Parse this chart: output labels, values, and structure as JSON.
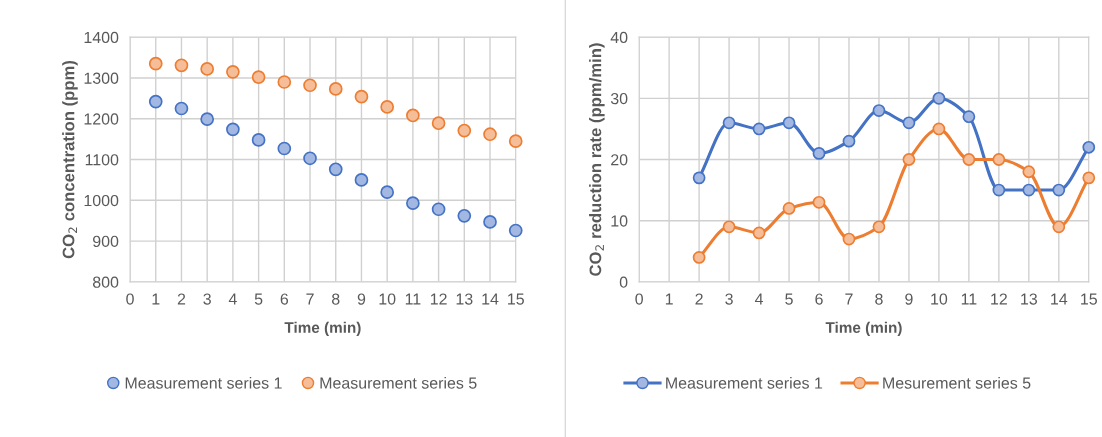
{
  "chart_data": [
    {
      "type": "scatter",
      "xlabel": "Time (min)",
      "ylabel": "CO$_{2}$ concentration (ppm)",
      "x": [
        1,
        2,
        3,
        4,
        5,
        6,
        7,
        8,
        9,
        10,
        11,
        12,
        13,
        14,
        15
      ],
      "xlim": [
        0,
        15
      ],
      "xticks": [
        0,
        1,
        2,
        3,
        4,
        5,
        6,
        7,
        8,
        9,
        10,
        11,
        12,
        13,
        14,
        15
      ],
      "ylim": [
        800,
        1400
      ],
      "yticks": [
        800,
        900,
        1000,
        1100,
        1200,
        1300,
        1400
      ],
      "grid": true,
      "legend": "bottom",
      "marker": "circle",
      "series": [
        {
          "name": "Measurement series 1",
          "color": "#4472c4",
          "values": [
            1242,
            1225,
            1199,
            1174,
            1148,
            1127,
            1103,
            1076,
            1050,
            1020,
            993,
            978,
            962,
            947,
            926
          ]
        },
        {
          "name": "Measurement series 5",
          "color": "#ed7d31",
          "values": [
            1335,
            1331,
            1322,
            1315,
            1302,
            1290,
            1282,
            1273,
            1254,
            1229,
            1208,
            1189,
            1171,
            1162,
            1145
          ]
        }
      ]
    },
    {
      "type": "line",
      "xlabel": "Time (min)",
      "ylabel": "CO$_{2}$ reduction rate (ppm/min)",
      "x": [
        2,
        3,
        4,
        5,
        6,
        7,
        8,
        9,
        10,
        11,
        12,
        13,
        14,
        15
      ],
      "xlim": [
        0,
        15
      ],
      "xticks": [
        0,
        1,
        2,
        3,
        4,
        5,
        6,
        7,
        8,
        9,
        10,
        11,
        12,
        13,
        14,
        15
      ],
      "ylim": [
        0,
        40
      ],
      "yticks": [
        0,
        10,
        20,
        30,
        40
      ],
      "grid": true,
      "legend": "bottom",
      "marker": "circle",
      "line_style": "solid",
      "series": [
        {
          "name": "Measurement series 1",
          "color": "#4472c4",
          "values": [
            17,
            26,
            25,
            26,
            21,
            23,
            28,
            26,
            30,
            27,
            15,
            15,
            15,
            22
          ]
        },
        {
          "name": "Mesurement series 5",
          "color": "#ed7d31",
          "values": [
            4,
            9,
            8,
            12,
            13,
            7,
            9,
            20,
            25,
            20,
            20,
            18,
            9,
            17
          ]
        }
      ]
    }
  ]
}
